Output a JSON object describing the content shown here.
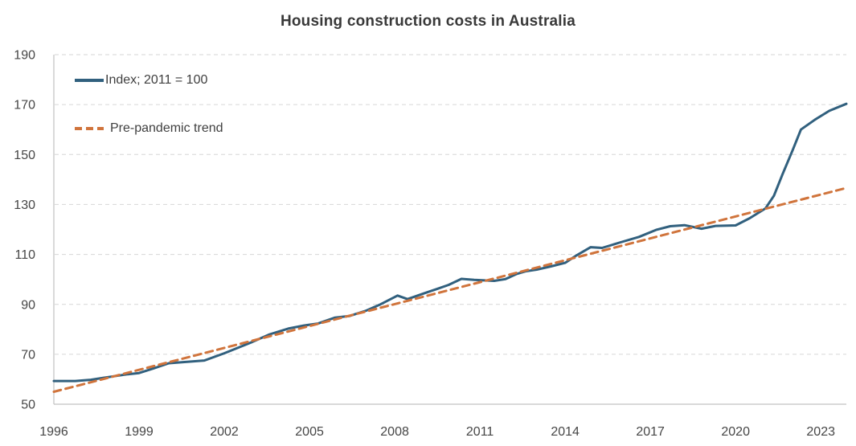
{
  "title": "Housing construction costs in Australia",
  "colors": {
    "index_line": "#31607E",
    "trend_line": "#D0743C",
    "gridline": "#D6D6D6",
    "axis_line": "#C0C0C0",
    "title_text": "#393939",
    "tick_text": "#464646"
  },
  "legend": [
    {
      "label": "Index; 2011 = 100",
      "style": "solid",
      "color": "#31607E"
    },
    {
      "label": "Pre-pandemic trend",
      "style": "dashed",
      "color": "#D0743C"
    }
  ],
  "chart_data": {
    "type": "line",
    "title": "Housing construction costs in Australia",
    "xlabel": "",
    "ylabel": "",
    "xlim": [
      1996,
      2023.9
    ],
    "ylim": [
      50,
      190
    ],
    "x_ticks": [
      1996,
      1999,
      2002,
      2005,
      2008,
      2011,
      2014,
      2017,
      2020,
      2023
    ],
    "y_ticks": [
      50,
      70,
      90,
      110,
      130,
      150,
      170,
      190
    ],
    "grid": "horizontal-dashed",
    "legend_position": "top-left-inside",
    "series": [
      {
        "name": "Index; 2011 = 100",
        "color": "#31607E",
        "line_style": "solid",
        "x": [
          1996.0,
          1996.75,
          1997.3,
          1998.0,
          1998.6,
          1999.0,
          1999.5,
          2000.05,
          2000.6,
          2001.3,
          2002.0,
          2002.5,
          2003.0,
          2003.6,
          2004.25,
          2004.8,
          2005.3,
          2005.9,
          2006.4,
          2007.0,
          2007.5,
          2008.1,
          2008.45,
          2009.0,
          2009.5,
          2009.9,
          2010.35,
          2010.8,
          2011.5,
          2011.9,
          2012.3,
          2012.6,
          2013.0,
          2013.5,
          2014.0,
          2014.4,
          2014.9,
          2015.3,
          2016.0,
          2016.6,
          2017.2,
          2017.7,
          2018.2,
          2018.8,
          2019.3,
          2020.0,
          2020.5,
          2021.05,
          2021.35,
          2021.65,
          2022.0,
          2022.3,
          2022.8,
          2023.3,
          2023.9
        ],
        "values": [
          59.3,
          59.3,
          59.8,
          61.0,
          62.0,
          62.5,
          64.3,
          66.4,
          66.9,
          67.5,
          70.4,
          72.7,
          75.0,
          78.0,
          80.3,
          81.5,
          82.3,
          84.7,
          85.3,
          87.5,
          90.0,
          93.5,
          92.1,
          94.3,
          96.2,
          97.8,
          100.2,
          99.8,
          99.4,
          100.1,
          102.2,
          103.2,
          103.9,
          105.2,
          106.6,
          109.6,
          112.9,
          112.6,
          115.0,
          117.0,
          119.8,
          121.3,
          121.7,
          120.3,
          121.4,
          121.6,
          124.5,
          128.4,
          133.5,
          142.0,
          151.5,
          160.0,
          164.0,
          167.5,
          170.3
        ]
      },
      {
        "name": "Pre-pandemic trend",
        "color": "#D0743C",
        "line_style": "dashed",
        "x": [
          1996.0,
          2023.9
        ],
        "values": [
          55.0,
          136.6
        ]
      }
    ]
  }
}
